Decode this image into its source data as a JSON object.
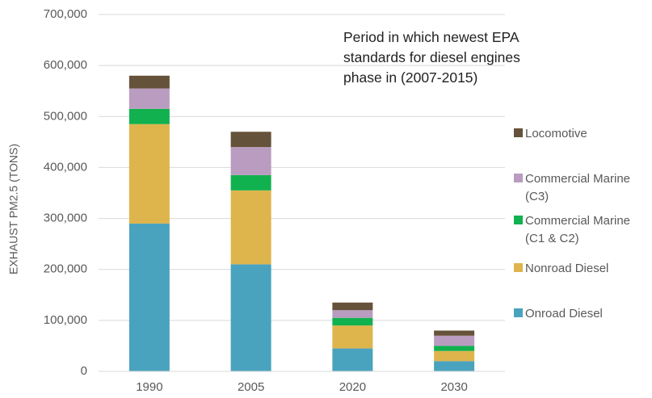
{
  "chart_data": {
    "type": "stacked_bar",
    "y_label": "EXHAUST PM2.5 (TONS)",
    "annotation": "Period in which newest EPA standards for diesel engines phase in (2007-2015)",
    "categories": [
      "1990",
      "2005",
      "2020",
      "2030"
    ],
    "series": [
      {
        "name": "Onroad Diesel",
        "color": "#4aa3be",
        "values": [
          290000,
          210000,
          45000,
          20000
        ]
      },
      {
        "name": "Nonroad Diesel",
        "color": "#deb54c",
        "values": [
          195000,
          145000,
          45000,
          20000
        ]
      },
      {
        "name": "Commercial Marine (C1 & C2)",
        "color": "#11b14f",
        "values": [
          30000,
          30000,
          15000,
          10000
        ]
      },
      {
        "name": "Commercial Marine (C3)",
        "color": "#b99cbf",
        "values": [
          40000,
          55000,
          15000,
          20000
        ]
      },
      {
        "name": "Locomotive",
        "color": "#65523a",
        "values": [
          25000,
          30000,
          15000,
          10000
        ]
      }
    ],
    "ylim": [
      0,
      700000
    ],
    "yticks": [
      0,
      {
        "value": 100000,
        "label": "100,000"
      },
      {
        "value": 200000,
        "label": "200,000"
      },
      {
        "value": 300000,
        "label": "300,000"
      },
      {
        "value": 400000,
        "label": "400,000"
      },
      {
        "value": 500000,
        "label": "500,000"
      },
      {
        "value": 600000,
        "label": "600,000"
      },
      {
        "value": 700000,
        "label": "700,000"
      }
    ],
    "grid": true,
    "legend": "right"
  }
}
